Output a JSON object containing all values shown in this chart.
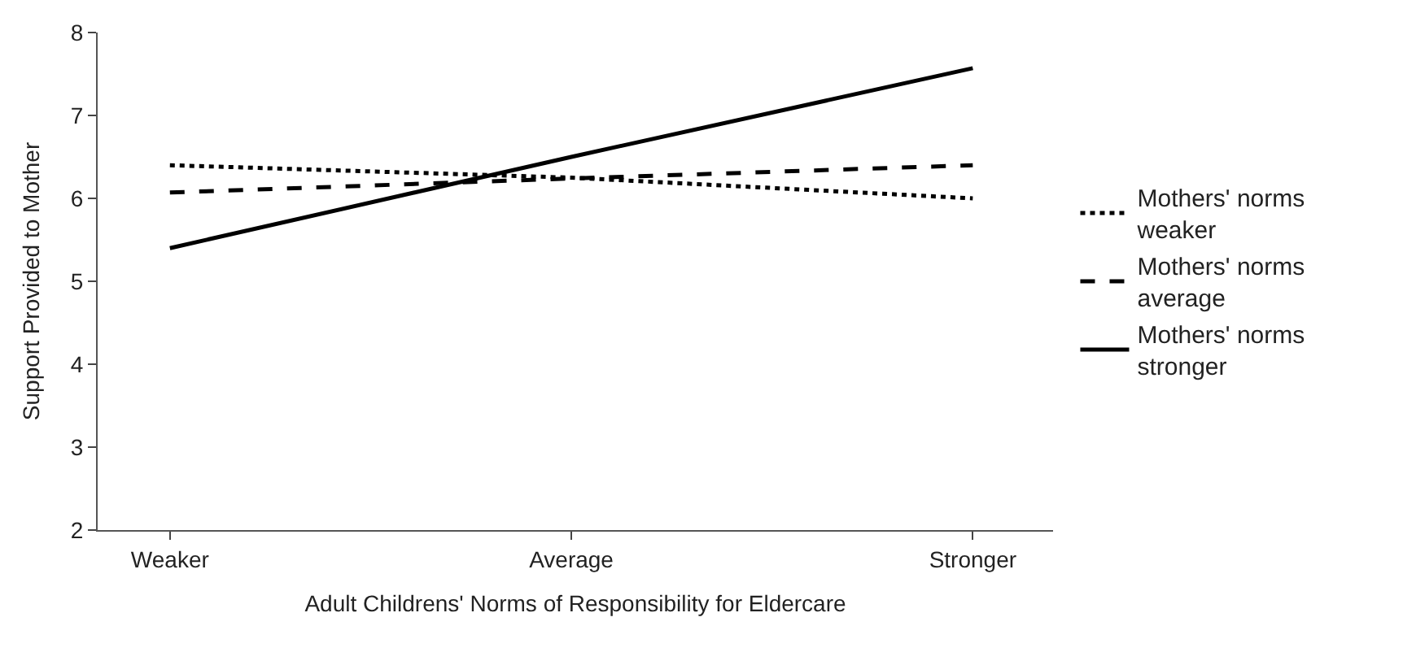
{
  "chart_data": {
    "type": "line",
    "xlabel": "Adult Childrens' Norms of Responsibility for Eldercare",
    "ylabel": "Support Provided to Mother",
    "categories": [
      "Weaker",
      "Average",
      "Stronger"
    ],
    "ylim": [
      2,
      8
    ],
    "yticks": [
      2,
      3,
      4,
      5,
      6,
      7,
      8
    ],
    "legend": "right",
    "marker": "none",
    "series": [
      {
        "name": "Mothers' norms\nweaker",
        "color": "#000000",
        "line_style": "dotted",
        "values": [
          6.4,
          6.25,
          6.0
        ]
      },
      {
        "name": "Mothers' norms\naverage",
        "color": "#000000",
        "line_style": "dashed",
        "values": [
          6.07,
          6.24,
          6.4
        ]
      },
      {
        "name": "Mothers' norms\nstronger",
        "color": "#000000",
        "line_style": "solid",
        "values": [
          5.4,
          6.5,
          7.57
        ]
      }
    ]
  }
}
